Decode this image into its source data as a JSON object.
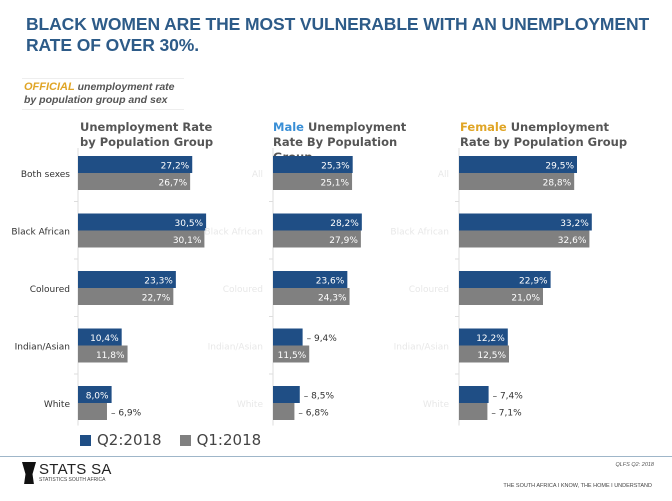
{
  "headline": "BLACK WOMEN ARE THE MOST VULNERABLE WITH AN UNEMPLOYMENT RATE OF OVER 30%.",
  "subtitle": {
    "accent": "OFFICIAL",
    "rest": " unemployment rate by population group and sex"
  },
  "colors": {
    "q2": "#1f4e85",
    "q1": "#808080",
    "male_accent": "#3a8fd6",
    "female_accent": "#e0a526"
  },
  "chart_data": [
    {
      "type": "bar",
      "orientation": "horizontal",
      "title_accent": "",
      "title": "Unemployment Rate by Population Group",
      "categories": [
        "Both sexes",
        "Black African",
        "Coloured",
        "Indian/Asian",
        "White"
      ],
      "series": [
        {
          "name": "Q2:2018",
          "values": [
            27.2,
            30.5,
            23.3,
            10.4,
            8.0
          ],
          "labels": [
            "27,2%",
            "30,5%",
            "23,3%",
            "10,4%",
            "8,0%"
          ]
        },
        {
          "name": "Q1:2018",
          "values": [
            26.7,
            30.1,
            22.7,
            11.8,
            6.9
          ],
          "labels": [
            "26,7%",
            "30,1%",
            "22,7%",
            "11,8%",
            "6,9%"
          ]
        }
      ]
    },
    {
      "type": "bar",
      "orientation": "horizontal",
      "title_accent": "Male",
      "title": " Unemployment Rate By Population Group",
      "categories": [
        "All",
        "Black African",
        "Coloured",
        "Indian/Asian",
        "White"
      ],
      "series": [
        {
          "name": "Q2:2018",
          "values": [
            25.3,
            28.2,
            23.6,
            9.4,
            8.5
          ],
          "labels": [
            "25,3%",
            "28,2%",
            "23,6%",
            "9,4%",
            "8,5%"
          ]
        },
        {
          "name": "Q1:2018",
          "values": [
            25.1,
            27.9,
            24.3,
            11.5,
            6.8
          ],
          "labels": [
            "25,1%",
            "27,9%",
            "24,3%",
            "11,5%",
            "6,8%"
          ]
        }
      ]
    },
    {
      "type": "bar",
      "orientation": "horizontal",
      "title_accent": "Female",
      "title": " Unemployment Rate by Population Group",
      "categories": [
        "All",
        "Black African",
        "Coloured",
        "Indian/Asian",
        "White"
      ],
      "series": [
        {
          "name": "Q2:2018",
          "values": [
            29.5,
            33.2,
            22.9,
            12.2,
            7.4
          ],
          "labels": [
            "29,5%",
            "33,2%",
            "22,9%",
            "12,2%",
            "7,4%"
          ]
        },
        {
          "name": "Q1:2018",
          "values": [
            28.8,
            32.6,
            21.0,
            12.5,
            7.1
          ],
          "labels": [
            "28,8%",
            "32,6%",
            "21,0%",
            "12,5%",
            "7,1%"
          ]
        }
      ]
    }
  ],
  "legend": [
    {
      "label": "Q2:2018"
    },
    {
      "label": "Q1:2018"
    }
  ],
  "footer": {
    "logo_title": "STATS SA",
    "logo_sub": "STATISTICS SOUTH AFRICA",
    "ref": "QLFS Q2: 2018",
    "slogan": "THE SOUTH AFRICA I KNOW, THE HOME I UNDERSTAND"
  }
}
